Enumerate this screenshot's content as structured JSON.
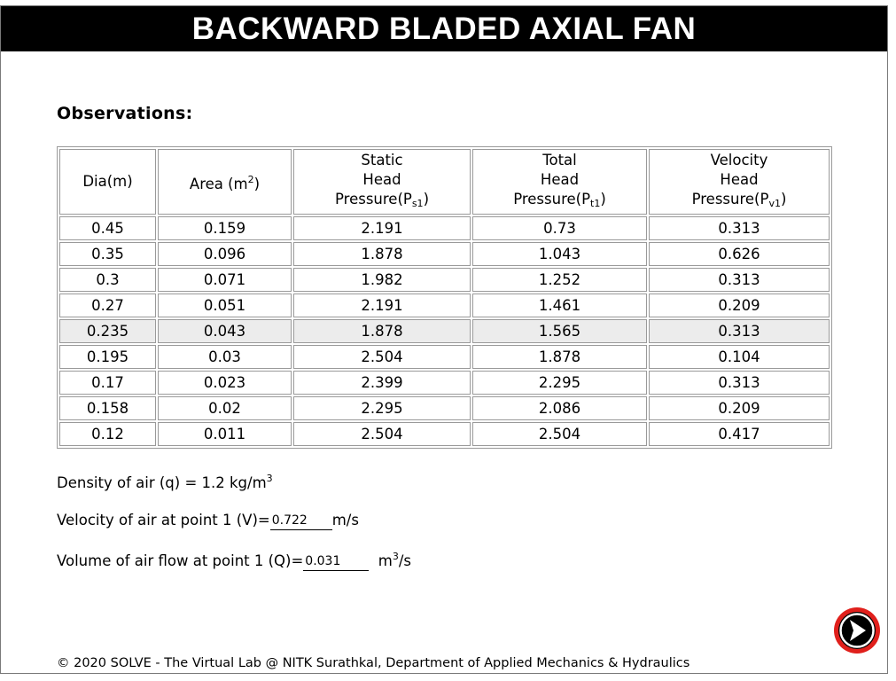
{
  "title": "BACKWARD BLADED AXIAL FAN",
  "observations_heading": "Observations:",
  "table": {
    "headers": {
      "dia": "Dia(m)",
      "area_base": "Area (m",
      "area_sup": "2",
      "area_close": ")",
      "static_l1": "Static",
      "static_l2": "Head",
      "static_l3_base": "Pressure(P",
      "static_sub": "s1",
      "static_close": ")",
      "total_l1": "Total",
      "total_l2": "Head",
      "total_l3_base": "Pressure(P",
      "total_sub": "t1",
      "total_close": ")",
      "vel_l1": "Velocity",
      "vel_l2": "Head",
      "vel_l3_base": "Pressure(P",
      "vel_sub": "v1",
      "vel_close": ")"
    },
    "rows": [
      [
        "0.45",
        "0.159",
        "2.191",
        "0.73",
        "0.313"
      ],
      [
        "0.35",
        "0.096",
        "1.878",
        "1.043",
        "0.626"
      ],
      [
        "0.3",
        "0.071",
        "1.982",
        "1.252",
        "0.313"
      ],
      [
        "0.27",
        "0.051",
        "2.191",
        "1.461",
        "0.209"
      ],
      [
        "0.235",
        "0.043",
        "1.878",
        "1.565",
        "0.313"
      ],
      [
        "0.195",
        "0.03",
        "2.504",
        "1.878",
        "0.104"
      ],
      [
        "0.17",
        "0.023",
        "2.399",
        "2.295",
        "0.313"
      ],
      [
        "0.158",
        "0.02",
        "2.295",
        "2.086",
        "0.209"
      ],
      [
        "0.12",
        "0.011",
        "2.504",
        "2.504",
        "0.417"
      ]
    ],
    "highlighted_row": 4,
    "highlight_color": "#ececec"
  },
  "density": {
    "label": "Density of air (q) = 1.2 kg/m",
    "sup": "3"
  },
  "velocity": {
    "label": "Velocity of air at point 1 (V)=",
    "value": "0.722",
    "unit": "m/s"
  },
  "volume": {
    "label": "Volume of air flow at point 1 (Q)=",
    "value": "0.031",
    "unit_base": "m",
    "unit_sup": "3",
    "unit_tail": "/s"
  },
  "next_button": {
    "icon": "arrow-right-icon",
    "accent": "#e0201c"
  },
  "footer": "© 2020 SOLVE - The Virtual Lab @ NITK Surathkal, Department of Applied Mechanics & Hydraulics"
}
